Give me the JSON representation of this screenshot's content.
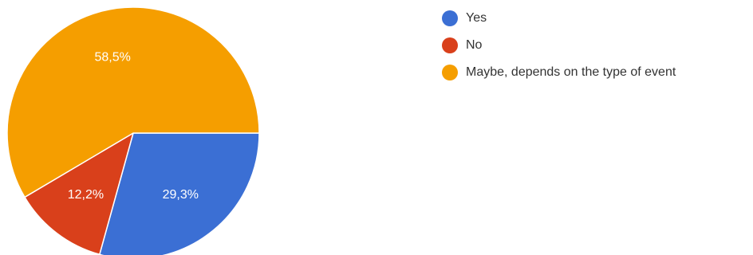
{
  "chart_data": {
    "type": "pie",
    "categories": [
      "Yes",
      "No",
      "Maybe, depends on the type of event"
    ],
    "values": [
      29.3,
      12.2,
      58.5
    ],
    "labels": [
      "29,3%",
      "12,2%",
      "58,5%"
    ],
    "colors": [
      "#3b6fd4",
      "#d9401b",
      "#f59e00"
    ],
    "start_angle_deg": 90,
    "direction": "clockwise",
    "legend_position": "right"
  }
}
